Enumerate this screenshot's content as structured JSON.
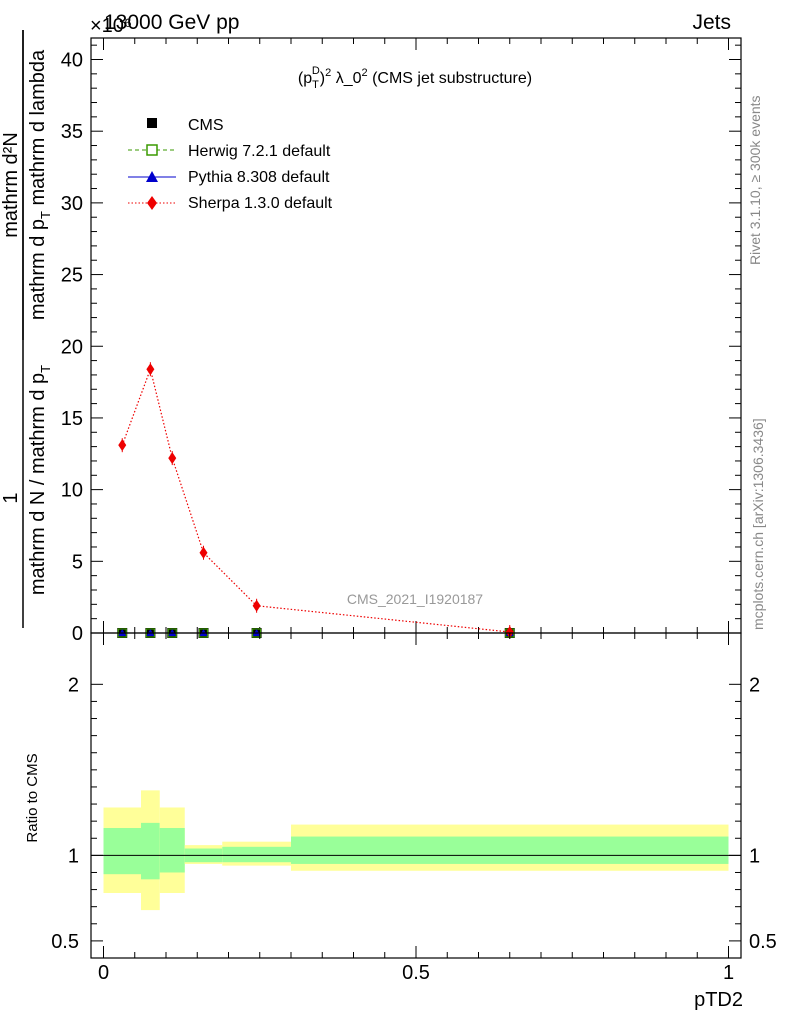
{
  "header": {
    "left": "13000 GeV pp",
    "right": "Jets",
    "exponent": "×10⁶"
  },
  "side_labels": {
    "rivet": "Rivet 3.1.10, ≥ 300k events",
    "mcplots": "mcplots.cern.ch [arXiv:1306.3436]"
  },
  "watermark": "CMS_2021_I1920187",
  "chart_data": [
    {
      "type": "line",
      "title_parts": [
        "(p",
        "T",
        "D",
        ")",
        "2",
        " λ_0",
        "2",
        " (CMS jet substructure)"
      ],
      "ylabel_numerator": "1",
      "ylabel_denominator": "mathrm d N / mathrm d p",
      "ylabel_frac2_num": "mathrm d²N",
      "ylabel_frac2_den": "mathrm d p",
      "ylabel_frac2_den_tail": " mathrm d lambda",
      "ylabel_sub": "T",
      "ylim": [
        0,
        41.5
      ],
      "xlim": [
        -0.02,
        1.02
      ],
      "yticks": [
        0,
        5,
        10,
        15,
        20,
        25,
        30,
        35,
        40
      ],
      "series": [
        {
          "name": "CMS",
          "color": "#000000",
          "marker": "square",
          "x": [
            0.03,
            0.075,
            0.11,
            0.16,
            0.245,
            0.65
          ],
          "y": [
            0.0,
            0.0,
            0.0,
            0.0,
            0.0,
            0.0
          ]
        },
        {
          "name": "Herwig 7.2.1 default",
          "color": "#3a9a00",
          "marker": "open-square",
          "style": "dashed",
          "x": [
            0.03,
            0.075,
            0.11,
            0.16,
            0.245,
            0.65
          ],
          "y": [
            0.0,
            0.0,
            0.0,
            0.0,
            0.0,
            0.0
          ]
        },
        {
          "name": "Pythia 8.308 default",
          "color": "#0000cc",
          "marker": "triangle",
          "style": "solid",
          "x": [
            0.03,
            0.075,
            0.11,
            0.16,
            0.245,
            0.65
          ],
          "y": [
            0.0,
            0.0,
            0.0,
            0.0,
            0.0,
            0.0
          ]
        },
        {
          "name": "Sherpa 1.3.0 default",
          "color": "#ee0000",
          "marker": "diamond",
          "style": "dotted",
          "x": [
            0.03,
            0.075,
            0.11,
            0.16,
            0.245,
            0.65
          ],
          "y": [
            13.1,
            18.4,
            12.2,
            5.6,
            1.9,
            0.07
          ]
        }
      ]
    },
    {
      "type": "area",
      "ylabel": "Ratio to CMS",
      "xlabel": "pTD2",
      "ylim": [
        0.4,
        2.3
      ],
      "xlim": [
        -0.02,
        1.02
      ],
      "yticks": [
        0.5,
        1,
        2
      ],
      "xticks": [
        0,
        0.5,
        1
      ],
      "xticklabels": [
        "0",
        "0.5",
        "1"
      ],
      "reference": 1,
      "bands": [
        {
          "x0": 0.0,
          "x1": 0.06,
          "inner": [
            0.89,
            1.16
          ],
          "outer": [
            0.78,
            1.28
          ]
        },
        {
          "x0": 0.06,
          "x1": 0.09,
          "inner": [
            0.86,
            1.19
          ],
          "outer": [
            0.68,
            1.38
          ]
        },
        {
          "x0": 0.09,
          "x1": 0.13,
          "inner": [
            0.9,
            1.16
          ],
          "outer": [
            0.78,
            1.28
          ]
        },
        {
          "x0": 0.13,
          "x1": 0.19,
          "inner": [
            0.96,
            1.04
          ],
          "outer": [
            0.95,
            1.06
          ]
        },
        {
          "x0": 0.19,
          "x1": 0.3,
          "inner": [
            0.96,
            1.05
          ],
          "outer": [
            0.94,
            1.08
          ]
        },
        {
          "x0": 0.3,
          "x1": 1.0,
          "inner": [
            0.95,
            1.11
          ],
          "outer": [
            0.91,
            1.18
          ]
        }
      ],
      "inner_color": "#99ff99",
      "outer_color": "#ffff99"
    }
  ]
}
